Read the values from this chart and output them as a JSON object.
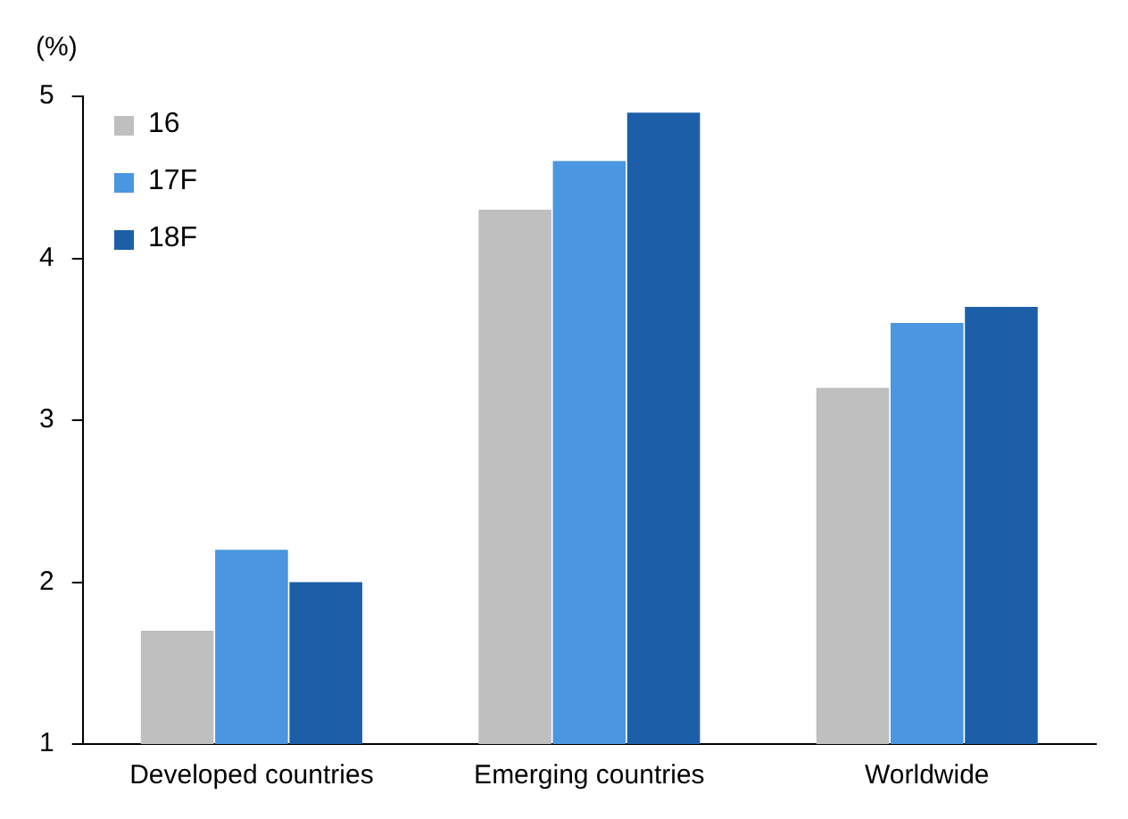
{
  "chart_data": {
    "type": "bar",
    "ylabel": "(%)",
    "categories": [
      "Developed countries",
      "Emerging countries",
      "Worldwide"
    ],
    "series": [
      {
        "name": "16",
        "color": "#bfbfbf",
        "values": [
          1.7,
          4.3,
          3.2
        ]
      },
      {
        "name": "17F",
        "color": "#4a96e0",
        "values": [
          2.2,
          4.6,
          3.6
        ]
      },
      {
        "name": "18F",
        "color": "#1c5fa8",
        "values": [
          2.0,
          4.9,
          3.7
        ]
      }
    ],
    "ylim": [
      1,
      5
    ],
    "yticks": [
      1,
      2,
      3,
      4,
      5
    ],
    "grid": false,
    "legend": "top left"
  }
}
